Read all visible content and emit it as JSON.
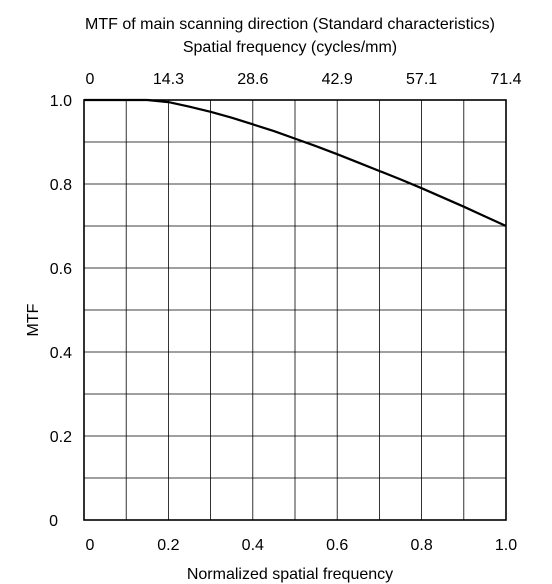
{
  "colors": {
    "axis": "#000000",
    "grid": "#000000",
    "curve": "#000000",
    "background": "#ffffff"
  },
  "chart_data": {
    "type": "line",
    "title": "MTF of main scanning direction (Standard characteristics)",
    "top_axis_label": "Spatial frequency (cycles/mm)",
    "top_tick_labels": [
      "0",
      "14.3",
      "28.6",
      "42.9",
      "57.1",
      "71.4"
    ],
    "xlabel": "Normalized spatial frequency",
    "ylabel": "MTF",
    "x_tick_labels": [
      "0",
      "0.2",
      "0.4",
      "0.6",
      "0.8",
      "1.0"
    ],
    "y_tick_labels": [
      "0",
      "0.2",
      "0.4",
      "0.6",
      "0.8",
      "1.0"
    ],
    "xlim": [
      0,
      1.0
    ],
    "ylim": [
      0,
      1.0
    ],
    "grid": true,
    "legend": "none",
    "series": [
      {
        "x": [
          0,
          0.1,
          0.15,
          0.2,
          0.25,
          0.3,
          0.35,
          0.4,
          0.45,
          0.5,
          0.55,
          0.6,
          0.65,
          0.7,
          0.75,
          0.8,
          0.85,
          0.9,
          0.95,
          1.0
        ],
        "y": [
          1.0,
          1.0,
          1.0,
          0.995,
          0.984,
          0.972,
          0.958,
          0.942,
          0.926,
          0.908,
          0.89,
          0.871,
          0.851,
          0.831,
          0.811,
          0.79,
          0.768,
          0.746,
          0.723,
          0.7
        ]
      }
    ]
  }
}
